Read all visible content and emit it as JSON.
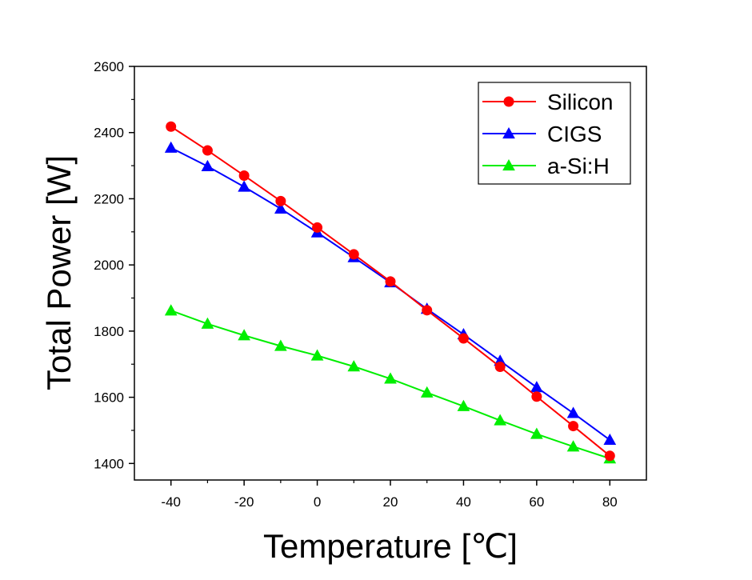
{
  "chart_data": {
    "type": "line",
    "xlabel": "Temperature [℃]",
    "ylabel": "Total Power [W]",
    "xlim": [
      -50,
      90
    ],
    "ylim": [
      1350,
      2600
    ],
    "x_ticks": [
      -40,
      -20,
      0,
      20,
      40,
      60,
      80
    ],
    "y_ticks": [
      1400,
      1600,
      1800,
      2000,
      2200,
      2400,
      2600
    ],
    "grid": false,
    "legend_position": "top-right",
    "x": [
      -40,
      -30,
      -20,
      -10,
      0,
      10,
      20,
      30,
      40,
      50,
      60,
      70,
      80
    ],
    "series": [
      {
        "name": "Silicon",
        "marker": "circle",
        "color": "#ff0000",
        "values": [
          2418,
          2346,
          2270,
          2193,
          2113,
          2032,
          1950,
          1863,
          1778,
          1692,
          1602,
          1513,
          1423
        ]
      },
      {
        "name": "CIGS",
        "marker": "triangle",
        "color": "#0000ff",
        "values": [
          2354,
          2298,
          2236,
          2170,
          2098,
          2023,
          1947,
          1867,
          1790,
          1710,
          1630,
          1552,
          1471
        ]
      },
      {
        "name": "a-Si:H",
        "marker": "triangle",
        "color": "#00ee00",
        "values": [
          1862,
          1822,
          1787,
          1755,
          1726,
          1693,
          1656,
          1614,
          1573,
          1530,
          1489,
          1451,
          1415
        ]
      }
    ]
  }
}
